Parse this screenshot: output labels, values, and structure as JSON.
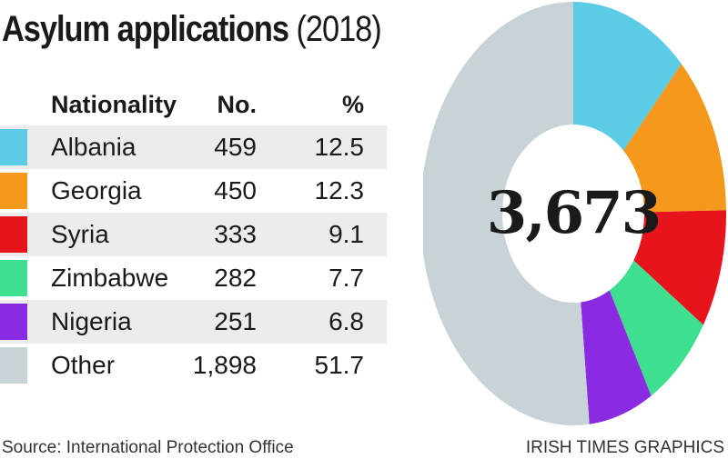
{
  "header": {
    "title_main": "Asylum applications",
    "title_year": "(2018)"
  },
  "table": {
    "columns": {
      "nationality": "Nationality",
      "number": "No.",
      "percent": "%"
    },
    "rows": [
      {
        "nationality": "Albania",
        "number": "459",
        "percent": "12.5",
        "color": "#5bcbe6"
      },
      {
        "nationality": "Georgia",
        "number": "450",
        "percent": "12.3",
        "color": "#f5981c"
      },
      {
        "nationality": "Syria",
        "number": "333",
        "percent": "9.1",
        "color": "#e8141c"
      },
      {
        "nationality": "Zimbabwe",
        "number": "282",
        "percent": "7.7",
        "color": "#3ee08f"
      },
      {
        "nationality": "Nigeria",
        "number": "251",
        "percent": "6.8",
        "color": "#8a2be2"
      },
      {
        "nationality": "Other",
        "number": "1,898",
        "percent": "51.7",
        "color": "#c8d3d7"
      }
    ]
  },
  "footer": {
    "source": "Source: International Protection Office",
    "credit": "IRISH TIMES GRAPHICS"
  },
  "chart_data": {
    "type": "pie",
    "title": "Asylum applications (2018)",
    "center_label": "3,673",
    "total": 3673,
    "categories": [
      "Albania",
      "Georgia",
      "Syria",
      "Zimbabwe",
      "Nigeria",
      "Other"
    ],
    "values": [
      459,
      450,
      333,
      282,
      251,
      1898
    ],
    "percentages": [
      12.5,
      12.3,
      9.1,
      7.7,
      6.8,
      51.7
    ],
    "colors": [
      "#5bcbe6",
      "#f5981c",
      "#e8141c",
      "#3ee08f",
      "#8a2be2",
      "#c8d3d7"
    ]
  }
}
